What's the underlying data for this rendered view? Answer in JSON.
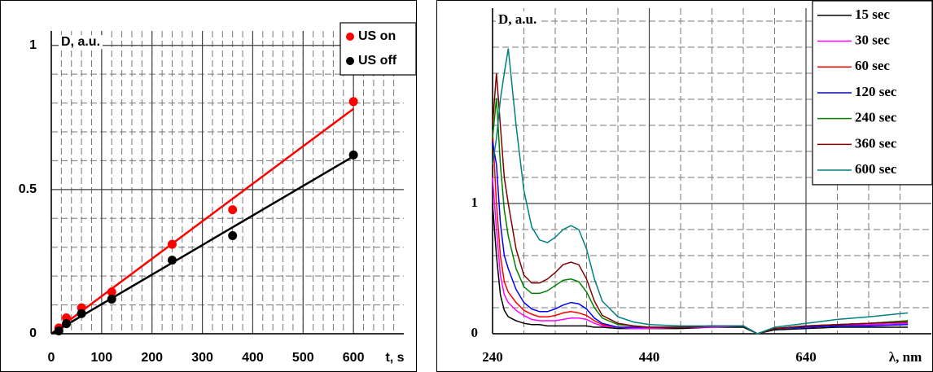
{
  "chart_data": [
    {
      "type": "scatter",
      "y_label": "D, a.u.",
      "x_label": "t, s",
      "x": [
        15,
        30,
        60,
        120,
        240,
        360,
        600
      ],
      "series": [
        {
          "name": "US on",
          "color": "#ff0000",
          "values": [
            0.02,
            0.055,
            0.09,
            0.145,
            0.31,
            0.43,
            0.805
          ],
          "trend": {
            "x": [
              0,
              600
            ],
            "values": [
              0,
              0.78
            ]
          }
        },
        {
          "name": "US off",
          "color": "#000000",
          "values": [
            0.01,
            0.035,
            0.07,
            0.12,
            0.255,
            0.34,
            0.62
          ],
          "trend": {
            "x": [
              0,
              600
            ],
            "values": [
              0,
              0.615
            ]
          }
        }
      ],
      "xlim": [
        0,
        700
      ],
      "xticks": [
        0,
        100,
        200,
        300,
        400,
        500,
        600
      ],
      "ylim": [
        0,
        1.05
      ],
      "yticks": [
        0,
        0.5,
        1
      ],
      "grid": true,
      "minor_divisions": 5,
      "legend": "top-right"
    },
    {
      "type": "line",
      "y_label": "D, a.u.",
      "x_label": "λ, nm",
      "x": [
        240,
        245,
        250,
        255,
        260,
        270,
        280,
        290,
        300,
        310,
        320,
        330,
        340,
        350,
        360,
        370,
        380,
        400,
        420,
        440,
        480,
        520,
        560,
        578,
        600,
        640,
        680,
        720,
        770
      ],
      "series": [
        {
          "name": "15 sec",
          "color": "#000000",
          "values": [
            1.0,
            0.6,
            0.3,
            0.18,
            0.13,
            0.1,
            0.08,
            0.07,
            0.07,
            0.06,
            0.06,
            0.06,
            0.06,
            0.06,
            0.06,
            0.05,
            0.05,
            0.04,
            0.04,
            0.04,
            0.04,
            0.05,
            0.05,
            0,
            0.03,
            0.04,
            0.05,
            0.05,
            0.05
          ]
        },
        {
          "name": "30 sec",
          "color": "#ff00ff",
          "values": [
            1.2,
            0.8,
            0.45,
            0.3,
            0.24,
            0.18,
            0.14,
            0.11,
            0.1,
            0.1,
            0.1,
            0.11,
            0.12,
            0.12,
            0.11,
            0.08,
            0.06,
            0.05,
            0.04,
            0.04,
            0.05,
            0.05,
            0.06,
            0,
            0.04,
            0.05,
            0.06,
            0.07,
            0.08
          ]
        },
        {
          "name": "60 sec",
          "color": "#ff0000",
          "values": [
            1.56,
            1.0,
            0.6,
            0.4,
            0.32,
            0.24,
            0.18,
            0.15,
            0.13,
            0.13,
            0.14,
            0.16,
            0.17,
            0.16,
            0.14,
            0.1,
            0.07,
            0.05,
            0.05,
            0.05,
            0.05,
            0.06,
            0.06,
            0,
            0.04,
            0.06,
            0.07,
            0.08,
            0.1
          ]
        },
        {
          "name": "120 sec",
          "color": "#0000ff",
          "values": [
            1.47,
            1.3,
            0.85,
            0.6,
            0.5,
            0.34,
            0.24,
            0.19,
            0.17,
            0.17,
            0.19,
            0.22,
            0.24,
            0.23,
            0.19,
            0.12,
            0.08,
            0.05,
            0.05,
            0.05,
            0.05,
            0.06,
            0.06,
            0,
            0.04,
            0.05,
            0.06,
            0.06,
            0.07
          ]
        },
        {
          "name": "240 sec",
          "color": "#008000",
          "values": [
            1.5,
            1.81,
            1.3,
            0.95,
            0.75,
            0.5,
            0.36,
            0.31,
            0.31,
            0.33,
            0.37,
            0.41,
            0.42,
            0.4,
            0.32,
            0.2,
            0.12,
            0.07,
            0.06,
            0.05,
            0.05,
            0.06,
            0.06,
            0,
            0.04,
            0.06,
            0.07,
            0.08,
            0.1
          ]
        },
        {
          "name": "360 sec",
          "color": "#800000",
          "values": [
            1.6,
            2.0,
            1.6,
            1.2,
            1.0,
            0.65,
            0.45,
            0.39,
            0.39,
            0.42,
            0.47,
            0.53,
            0.55,
            0.53,
            0.42,
            0.25,
            0.14,
            0.08,
            0.06,
            0.05,
            0.05,
            0.06,
            0.06,
            0,
            0.04,
            0.06,
            0.07,
            0.08,
            0.09
          ]
        },
        {
          "name": "600 sec",
          "color": "#008080",
          "values": [
            1.3,
            1.5,
            1.8,
            2.0,
            2.19,
            1.6,
            1.1,
            0.82,
            0.72,
            0.7,
            0.74,
            0.8,
            0.83,
            0.8,
            0.65,
            0.42,
            0.25,
            0.13,
            0.09,
            0.07,
            0.06,
            0.06,
            0.06,
            0,
            0.05,
            0.08,
            0.11,
            0.13,
            0.16
          ]
        }
      ],
      "xlim": [
        240,
        800
      ],
      "xticks": [
        240,
        440,
        640
      ],
      "ylim": [
        0,
        2.5
      ],
      "yticks": [
        0,
        1
      ],
      "grid": true,
      "minor_divisions": 5,
      "legend": "top-right"
    }
  ]
}
